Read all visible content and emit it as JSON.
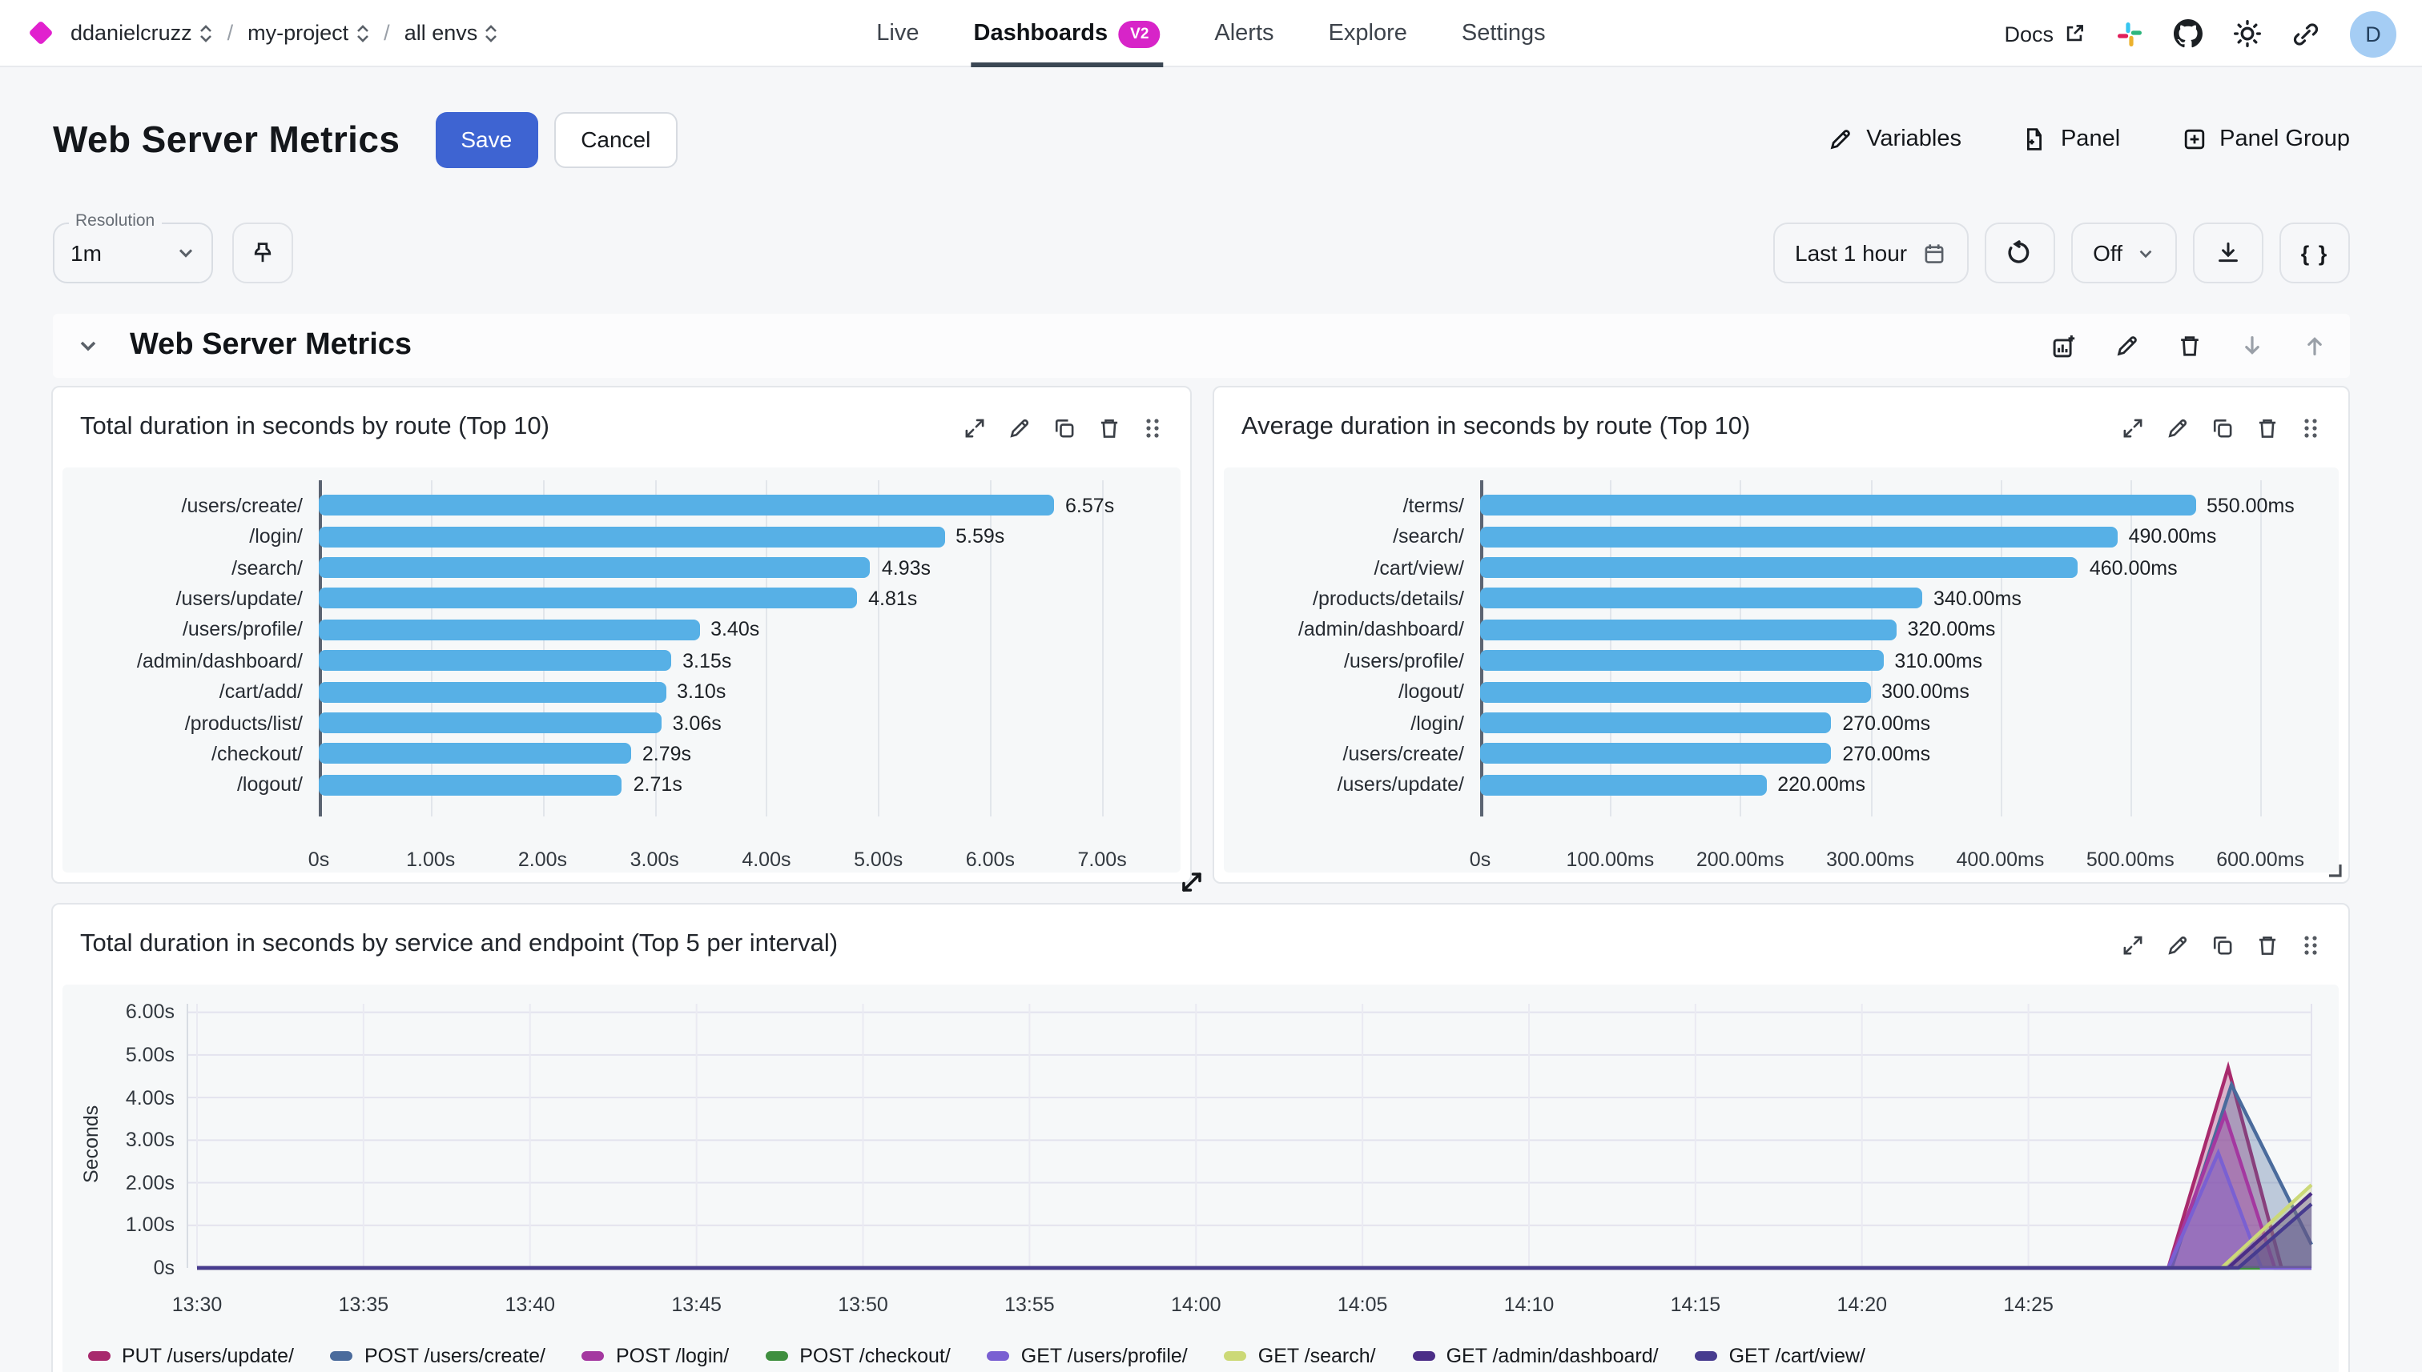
{
  "topbar": {
    "breadcrumb": {
      "org": "ddanielcruzz",
      "project": "my-project",
      "env": "all envs",
      "separator": "/"
    },
    "nav": {
      "items": [
        {
          "label": "Live"
        },
        {
          "label": "Dashboards",
          "badge": "V2",
          "active": true
        },
        {
          "label": "Alerts"
        },
        {
          "label": "Explore"
        },
        {
          "label": "Settings"
        }
      ]
    },
    "docs_label": "Docs",
    "avatar_initial": "D"
  },
  "header": {
    "title": "Web Server Metrics",
    "save_label": "Save",
    "cancel_label": "Cancel",
    "actions": {
      "variables": "Variables",
      "panel": "Panel",
      "panel_group": "Panel Group"
    }
  },
  "toolbar": {
    "resolution_label": "Resolution",
    "resolution_value": "1m",
    "time_range": "Last 1 hour",
    "autorefresh_value": "Off",
    "braces_label": "{ }"
  },
  "section": {
    "title": "Web Server Metrics"
  },
  "colors": {
    "accent_blue": "#3e64d2",
    "bar_blue": "#57b0e6",
    "badge_magenta": "#d724c8",
    "logo_magenta": "#e121ce",
    "avatar_bg": "#a5cdf4"
  },
  "chart_data": [
    {
      "type": "bar",
      "orientation": "horizontal",
      "title": "Total duration in seconds by route (Top 10)",
      "bar_color": "#57b0e6",
      "categories": [
        "/users/create/",
        "/login/",
        "/search/",
        "/users/update/",
        "/users/profile/",
        "/admin/dashboard/",
        "/cart/add/",
        "/products/list/",
        "/checkout/",
        "/logout/"
      ],
      "values": [
        6.57,
        5.59,
        4.93,
        4.81,
        3.4,
        3.15,
        3.1,
        3.06,
        2.79,
        2.71
      ],
      "value_labels": [
        "6.57s",
        "5.59s",
        "4.93s",
        "4.81s",
        "3.40s",
        "3.15s",
        "3.10s",
        "3.06s",
        "2.79s",
        "2.71s"
      ],
      "ticks": [
        {
          "v": 0,
          "label": "0s"
        },
        {
          "v": 1,
          "label": "1.00s"
        },
        {
          "v": 2,
          "label": "2.00s"
        },
        {
          "v": 3,
          "label": "3.00s"
        },
        {
          "v": 4,
          "label": "4.00s"
        },
        {
          "v": 5,
          "label": "5.00s"
        },
        {
          "v": 6,
          "label": "6.00s"
        },
        {
          "v": 7,
          "label": "7.00s"
        }
      ],
      "axis_max": 7.5
    },
    {
      "type": "bar",
      "orientation": "horizontal",
      "title": "Average duration in seconds by route (Top 10)",
      "bar_color": "#57b0e6",
      "categories": [
        "/terms/",
        "/search/",
        "/cart/view/",
        "/products/details/",
        "/admin/dashboard/",
        "/users/profile/",
        "/logout/",
        "/login/",
        "/users/create/",
        "/users/update/"
      ],
      "values": [
        550,
        490,
        460,
        340,
        320,
        310,
        300,
        270,
        270,
        220
      ],
      "value_labels": [
        "550.00ms",
        "490.00ms",
        "460.00ms",
        "340.00ms",
        "320.00ms",
        "310.00ms",
        "300.00ms",
        "270.00ms",
        "270.00ms",
        "220.00ms"
      ],
      "ticks": [
        {
          "v": 0,
          "label": "0s"
        },
        {
          "v": 100,
          "label": "100.00ms"
        },
        {
          "v": 200,
          "label": "200.00ms"
        },
        {
          "v": 300,
          "label": "300.00ms"
        },
        {
          "v": 400,
          "label": "400.00ms"
        },
        {
          "v": 500,
          "label": "500.00ms"
        },
        {
          "v": 600,
          "label": "600.00ms"
        }
      ],
      "axis_max": 643
    },
    {
      "type": "area",
      "title": "Total duration in seconds by service and endpoint (Top 5 per interval)",
      "ylabel": "Seconds",
      "ylim": [
        0,
        6.2
      ],
      "yticks": [
        {
          "v": 0,
          "label": "0s"
        },
        {
          "v": 1,
          "label": "1.00s"
        },
        {
          "v": 2,
          "label": "2.00s"
        },
        {
          "v": 3,
          "label": "3.00s"
        },
        {
          "v": 4,
          "label": "4.00s"
        },
        {
          "v": 5,
          "label": "5.00s"
        },
        {
          "v": 6,
          "label": "6.00s"
        }
      ],
      "x_domain_minutes": [
        0,
        63.5
      ],
      "x_start_time": "13:30",
      "xticks": [
        {
          "m": 0,
          "label": "13:30"
        },
        {
          "m": 5,
          "label": "13:35"
        },
        {
          "m": 10,
          "label": "13:40"
        },
        {
          "m": 15,
          "label": "13:45"
        },
        {
          "m": 20,
          "label": "13:50"
        },
        {
          "m": 25,
          "label": "13:55"
        },
        {
          "m": 30,
          "label": "14:00"
        },
        {
          "m": 35,
          "label": "14:05"
        },
        {
          "m": 40,
          "label": "14:10"
        },
        {
          "m": 45,
          "label": "14:15"
        },
        {
          "m": 50,
          "label": "14:20"
        },
        {
          "m": 55,
          "label": "14:25"
        }
      ],
      "series": [
        {
          "name": "PUT /users/update/",
          "color": "#a82a6d",
          "points": [
            [
              0,
              0
            ],
            [
              59.2,
              0
            ],
            [
              61.0,
              4.7
            ],
            [
              62.6,
              0
            ],
            [
              63.5,
              0
            ]
          ]
        },
        {
          "name": "POST /users/create/",
          "color": "#4a6b9c",
          "points": [
            [
              0,
              0
            ],
            [
              59.3,
              0
            ],
            [
              61.1,
              4.3
            ],
            [
              63.5,
              0.55
            ]
          ]
        },
        {
          "name": "POST /login/",
          "color": "#a438a0",
          "points": [
            [
              0,
              0
            ],
            [
              59.2,
              0
            ],
            [
              60.9,
              3.6
            ],
            [
              62.4,
              0
            ],
            [
              63.5,
              0
            ]
          ]
        },
        {
          "name": "POST /checkout/",
          "color": "#3f8f3f",
          "points": [
            [
              0,
              0
            ],
            [
              63.5,
              0
            ]
          ]
        },
        {
          "name": "GET /users/profile/",
          "color": "#7a60d2",
          "points": [
            [
              0,
              0
            ],
            [
              59.2,
              0
            ],
            [
              60.7,
              2.7
            ],
            [
              62.0,
              0
            ],
            [
              63.5,
              0
            ]
          ]
        },
        {
          "name": "GET /search/",
          "color": "#ccd977",
          "points": [
            [
              0,
              0
            ],
            [
              60.8,
              0
            ],
            [
              63.5,
              1.95
            ]
          ]
        },
        {
          "name": "GET /admin/dashboard/",
          "color": "#4b2d87",
          "points": [
            [
              0,
              0
            ],
            [
              61.0,
              0
            ],
            [
              63.5,
              1.75
            ]
          ]
        },
        {
          "name": "GET /cart/view/",
          "color": "#473c8f",
          "points": [
            [
              0,
              0
            ],
            [
              61.3,
              0
            ],
            [
              63.5,
              1.5
            ]
          ]
        }
      ]
    }
  ]
}
